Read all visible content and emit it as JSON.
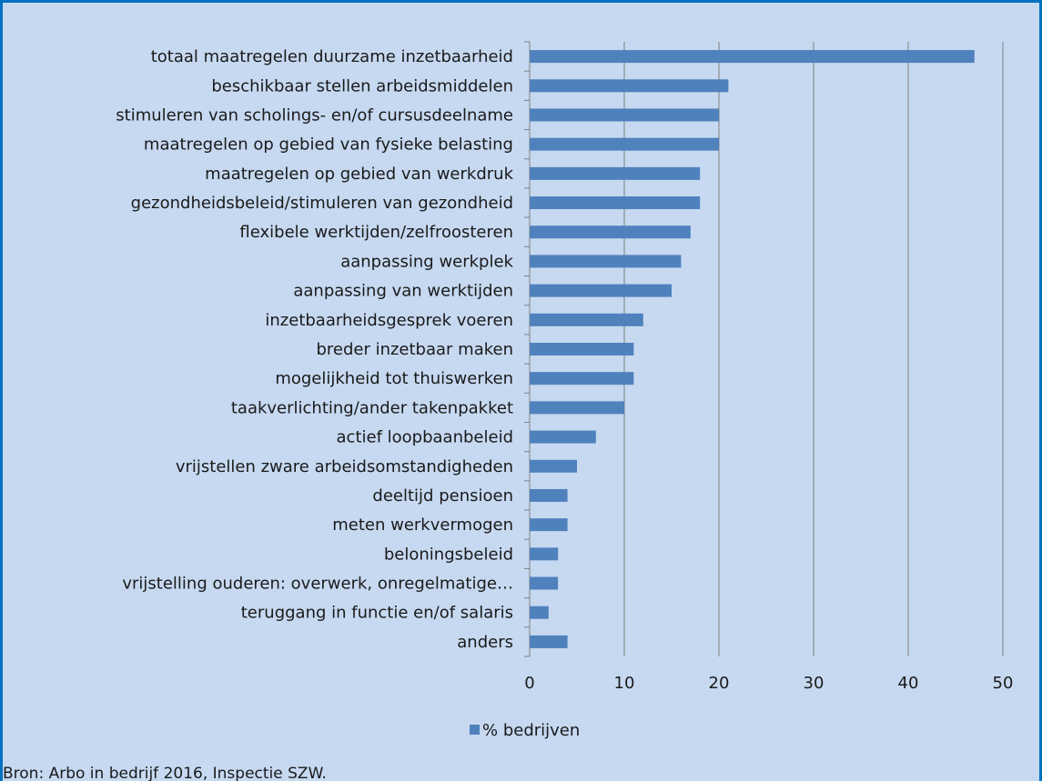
{
  "chart_data": {
    "type": "bar",
    "orientation": "horizontal",
    "categories": [
      "totaal maatregelen duurzame inzetbaarheid",
      "beschikbaar stellen arbeidsmiddelen",
      "stimuleren van scholings- en/of cursusdeelname",
      "maatregelen op gebied van fysieke belasting",
      "maatregelen op gebied van werkdruk",
      "gezondheidsbeleid/stimuleren van gezondheid",
      "flexibele werktijden/zelfroosteren",
      "aanpassing werkplek",
      "aanpassing van werktijden",
      "inzetbaarheidsgesprek voeren",
      "breder inzetbaar maken",
      "mogelijkheid tot thuiswerken",
      "taakverlichting/ander takenpakket",
      "actief loopbaanbeleid",
      "vrijstellen zware arbeidsomstandigheden",
      "deeltijd pensioen",
      "meten werkvermogen",
      "beloningsbeleid",
      "vrijstelling ouderen: overwerk, onregelmatige…",
      "teruggang in functie en/of salaris",
      "anders"
    ],
    "series": [
      {
        "name": "% bedrijven",
        "values": [
          47,
          21,
          20,
          20,
          18,
          18,
          17,
          16,
          15,
          12,
          11,
          11,
          10,
          7,
          5,
          4,
          4,
          3,
          3,
          2,
          4
        ]
      }
    ],
    "xlim": [
      0,
      50
    ],
    "xticks": [
      0,
      10,
      20,
      30,
      40,
      50
    ],
    "grid": true,
    "legend_position": "bottom",
    "bar_color": "#4f81bd",
    "gridline_color": "#808080"
  },
  "footer": {
    "source": "Bron: Arbo in bedrijf 2016, Inspectie SZW."
  }
}
